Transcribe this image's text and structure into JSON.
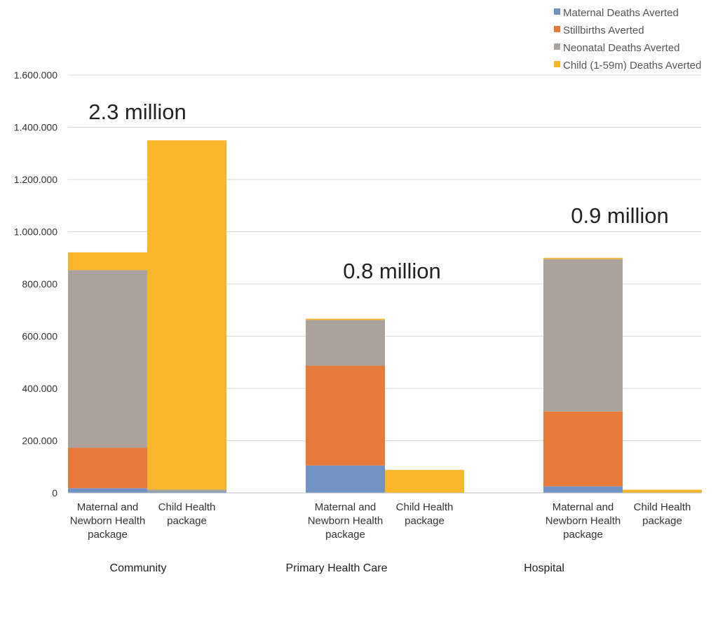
{
  "chart_data": {
    "type": "bar",
    "stacked": true,
    "y_ticks": [
      "0",
      "200.000",
      "400.000",
      "600.000",
      "800.000",
      "1.000.000",
      "1.200.000",
      "1.400.000",
      "1.600.000"
    ],
    "ylim": [
      0,
      1600000
    ],
    "grid": true,
    "legend_position": "top-right",
    "bars": [
      {
        "label": "Maternal and Newborn Health package",
        "label_lines": [
          "Maternal and",
          "Newborn Health",
          "package"
        ],
        "group": "Community"
      },
      {
        "label": "Child Health package",
        "label_lines": [
          "Child Health",
          "package"
        ],
        "group": "Community"
      },
      {
        "label": "Maternal and Newborn Health package",
        "label_lines": [
          "Maternal and",
          "Newborn Health",
          "package"
        ],
        "group": "Primary Health Care"
      },
      {
        "label": "Child Health package",
        "label_lines": [
          "Child Health",
          "package"
        ],
        "group": "Primary Health Care"
      },
      {
        "label": "Maternal and Newborn Health package",
        "label_lines": [
          "Maternal and",
          "Newborn Health",
          "package"
        ],
        "group": "Hospital"
      },
      {
        "label": "Child Health package",
        "label_lines": [
          "Child Health",
          "package"
        ],
        "group": "Hospital"
      }
    ],
    "groups": [
      "Community",
      "Primary Health Care",
      "Hospital"
    ],
    "series": [
      {
        "name": "Maternal Deaths Averted",
        "color": "#7093c4",
        "values": [
          18000,
          5000,
          105000,
          0,
          25000,
          0
        ]
      },
      {
        "name": "Stillbirths Averted",
        "color": "#e67a38",
        "values": [
          155000,
          0,
          382000,
          0,
          287000,
          0
        ]
      },
      {
        "name": "Neonatal Deaths Averted",
        "color": "#aba29b",
        "values": [
          680000,
          8000,
          175000,
          0,
          583000,
          0
        ]
      },
      {
        "name": "Child (1-59m) Deaths Averted",
        "color": "#f9b62a",
        "values": [
          68000,
          1337000,
          5000,
          88000,
          5000,
          12000
        ]
      }
    ],
    "annotations": [
      "2.3 million",
      "0.8 million",
      "0.9 million"
    ]
  }
}
